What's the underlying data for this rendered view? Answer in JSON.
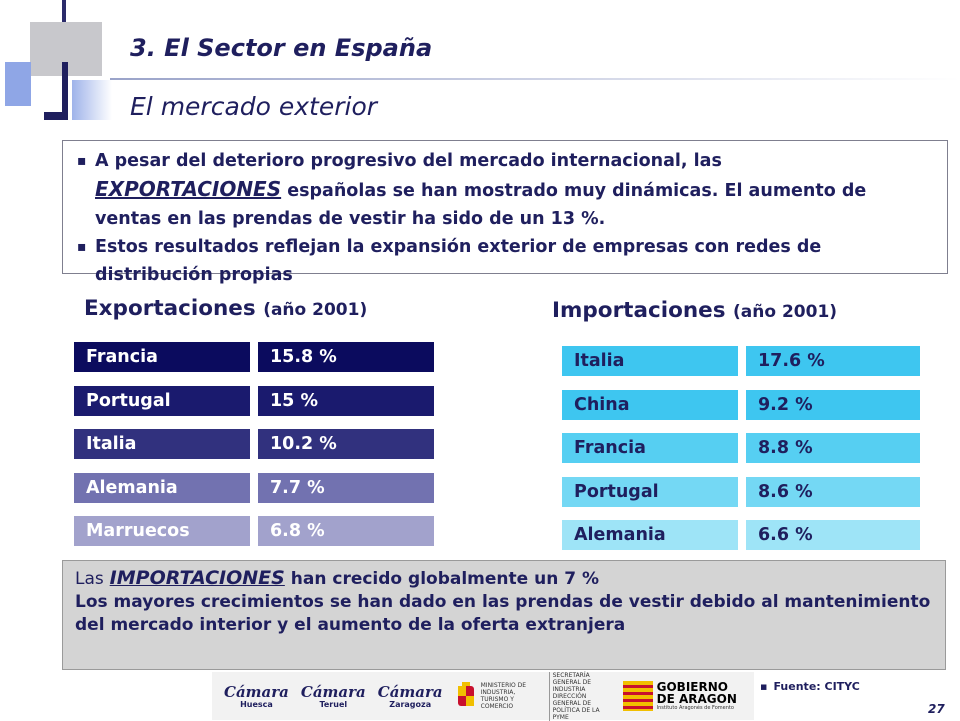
{
  "header": {
    "title": "3. El Sector en España",
    "subtitle": "El mercado exterior"
  },
  "intro": {
    "b1_pre": "A pesar del deterioro progresivo del mercado internacional, las",
    "b1_em": "EXPORTACIONES",
    "b1_post": "españolas  se han mostrado muy dinámicas. El aumento  de ventas en las prendas de vestir ha sido de un 13 %.",
    "b2": "Estos resultados reflejan la expansión exterior de empresas con redes de distribución propias"
  },
  "exports": {
    "heading": "Exportaciones",
    "year": "(año 2001)",
    "rows": [
      {
        "country": "Francia",
        "value": "15.8 %",
        "color": "#0b0b5e"
      },
      {
        "country": "Portugal",
        "value": "15 %",
        "color": "#1a1a6e"
      },
      {
        "country": "Italia",
        "value": "10.2 %",
        "color": "#31317e"
      },
      {
        "country": "Alemania",
        "value": "7.7 %",
        "color": "#7272b0"
      },
      {
        "country": "Marruecos",
        "value": "6.8 %",
        "color": "#a2a2cc"
      }
    ]
  },
  "imports": {
    "heading": "Importaciones",
    "year": "(año 2001)",
    "rows": [
      {
        "country": "Italia",
        "value": "17.6 %",
        "color": "#3ec6f0"
      },
      {
        "country": "China",
        "value": "9.2  %",
        "color": "#3ec6f0"
      },
      {
        "country": "Francia",
        "value": "8.8  %",
        "color": "#56cff2"
      },
      {
        "country": "Portugal",
        "value": "8.6 %",
        "color": "#74d8f4"
      },
      {
        "country": "Alemania",
        "value": "6.6 %",
        "color": "#9ee4f7"
      }
    ]
  },
  "note": {
    "lead": "Las",
    "em": "IMPORTACIONES",
    "line1_post": "han crecido globalmente un 7 %",
    "rest": "Los mayores crecimientos se han dado en las prendas de vestir debido al mantenimiento del mercado interior y el aumento de la oferta extranjera"
  },
  "logos": {
    "camara1": "Cámara",
    "camara1_city": "Huesca",
    "camara2": "Cámara",
    "camara2_city": "Teruel",
    "camara3": "Cámara",
    "camara3_city": "Zaragoza",
    "ministry_a": "MINISTERIO DE INDUSTRIA, TURISMO Y COMERCIO",
    "ministry_b": "SECRETARÍA GENERAL DE INDUSTRIA DIRECCIÓN GENERAL DE POLÍTICA DE LA PYME",
    "gov_line1": "GOBIERNO",
    "gov_line2": "DE ARAGON",
    "gov_sub": "Instituto Aragonés de Fomento"
  },
  "footer": {
    "source": "Fuente: CITYC",
    "page": "27"
  }
}
